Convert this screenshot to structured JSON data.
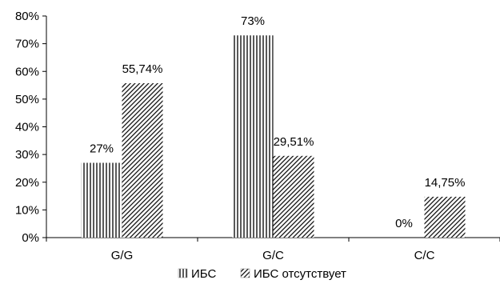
{
  "chart_data": {
    "type": "bar",
    "categories": [
      "G/G",
      "G/C",
      "C/C"
    ],
    "series": [
      {
        "name": "ИБС",
        "values": [
          27,
          73,
          0
        ],
        "labels": [
          "27%",
          "73%",
          "0%"
        ],
        "pattern": "vertical-lines"
      },
      {
        "name": "ИБС отсутствует",
        "values": [
          55.74,
          29.51,
          14.75
        ],
        "labels": [
          "55,74%",
          "29,51%",
          "14,75%"
        ],
        "pattern": "diagonal-lines"
      }
    ],
    "ylim": [
      0,
      80
    ],
    "yticks": [
      0,
      10,
      20,
      30,
      40,
      50,
      60,
      70,
      80
    ],
    "ytick_labels": [
      "0%",
      "10%",
      "20%",
      "30%",
      "40%",
      "50%",
      "60%",
      "70%",
      "80%"
    ],
    "grid": false,
    "legend_position": "bottom",
    "title": "",
    "xlabel": "",
    "ylabel": "",
    "colors": {
      "bar_stroke": "#000000",
      "background": "#ffffff"
    }
  }
}
